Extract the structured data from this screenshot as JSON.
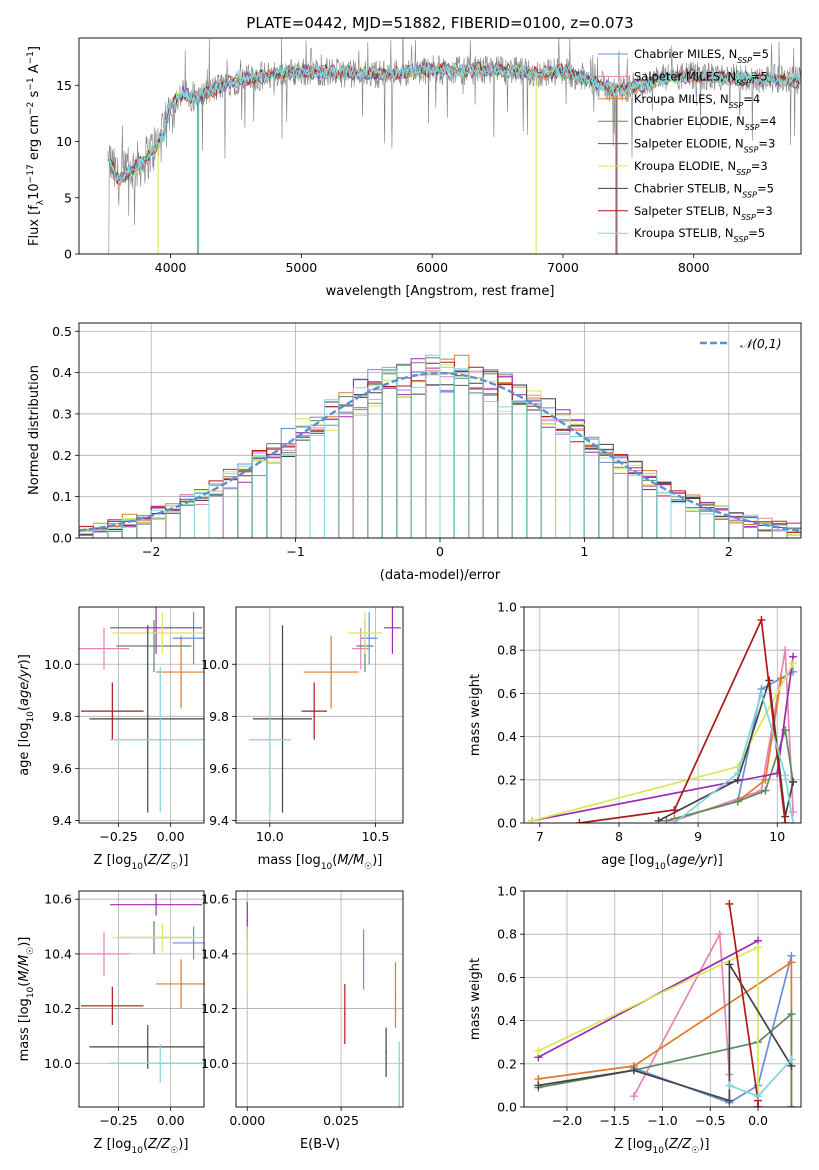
{
  "figure_title": "PLATE=0442, MJD=51882, FIBERID=0100, z=0.073",
  "colors": {
    "chabrier_miles": "#6a8fd8",
    "salpeter_miles": "#e882b8",
    "kroupa_miles": "#e07a2a",
    "chabrier_elodie": "#5f8a5f",
    "salpeter_elodie": "#9b2bb0",
    "kroupa_elodie": "#d8e85a",
    "chabrier_stelib": "#444444",
    "salpeter_stelib": "#b01818",
    "kroupa_stelib": "#7fd6dc",
    "data": "#808080",
    "normal": "#5b8fd6",
    "grid": "#b0b0b0"
  },
  "chart_data": [
    {
      "id": "spectrum",
      "type": "line",
      "title": "PLATE=0442, MJD=51882, FIBERID=0100, z=0.073",
      "xlabel": "wavelength [Angstrom, rest frame]",
      "ylabel": "Flux [f_λ 10^-17 erg cm^-2 s^-1 A^-1]",
      "xlim": [
        3300,
        8820
      ],
      "ylim": [
        0,
        19.2
      ],
      "xticks": [
        4000,
        5000,
        6000,
        7000,
        8000
      ],
      "yticks": [
        0,
        5,
        10,
        15
      ],
      "grid": false,
      "legend_position": "top-right",
      "continuum": {
        "x": [
          3520,
          3600,
          3700,
          3800,
          3900,
          3950,
          4000,
          4100,
          4200,
          4300,
          4400,
          4500,
          4600,
          4800,
          5000,
          5200,
          5400,
          5600,
          5800,
          6000,
          6200,
          6400,
          6600,
          6800,
          7000,
          7200,
          7400,
          7600,
          7800,
          8000,
          8200,
          8400,
          8600,
          8800
        ],
        "y": [
          8.5,
          6.5,
          7.5,
          8.3,
          9.8,
          10.5,
          13.3,
          14.3,
          13.8,
          14.5,
          15.0,
          15.4,
          15.6,
          16.0,
          16.2,
          16.2,
          16.0,
          16.0,
          16.2,
          16.4,
          16.3,
          16.4,
          16.3,
          16.0,
          16.3,
          15.5,
          14.5,
          15.0,
          15.7,
          15.8,
          15.7,
          15.6,
          15.6,
          15.4
        ]
      },
      "series": [
        {
          "name": "Chabrier MILES, N_SSP=5",
          "key": "chabrier_miles"
        },
        {
          "name": "Salpeter MILES, N_SSP=5",
          "key": "salpeter_miles"
        },
        {
          "name": "Kroupa MILES, N_SSP=4",
          "key": "kroupa_miles"
        },
        {
          "name": "Chabrier ELODIE, N_SSP=4",
          "key": "chabrier_elodie"
        },
        {
          "name": "Salpeter ELODIE, N_SSP=3",
          "key": "salpeter_elodie"
        },
        {
          "name": "Kroupa ELODIE, N_SSP=3",
          "key": "kroupa_elodie"
        },
        {
          "name": "Chabrier STELIB, N_SSP=5",
          "key": "chabrier_stelib"
        },
        {
          "name": "Salpeter STELIB, N_SSP=3",
          "key": "salpeter_stelib"
        },
        {
          "name": "Kroupa STELIB, N_SSP=5",
          "key": "kroupa_stelib"
        }
      ]
    },
    {
      "id": "residuals",
      "type": "bar",
      "xlabel": "(data-model)/error",
      "ylabel": "Normed distribution",
      "xlim": [
        -2.5,
        2.5
      ],
      "ylim": [
        0,
        0.52
      ],
      "xticks": [
        -2,
        -1,
        0,
        1,
        2
      ],
      "yticks": [
        0.0,
        0.1,
        0.2,
        0.3,
        0.4,
        0.5
      ],
      "grid": true,
      "legend_position": "top-right",
      "legend": [
        "𝒩(0,1)"
      ],
      "bin_width": 0.1
    },
    {
      "id": "age_vs_Z",
      "type": "scatter",
      "xlabel": "Z [log10(Z/Z☉)]",
      "ylabel": "age  [log10(age/yr)]",
      "xlim": [
        -0.44,
        0.16
      ],
      "ylim": [
        9.39,
        10.22
      ],
      "xticks": [
        -0.25,
        0.0
      ],
      "yticks": [
        9.4,
        9.6,
        9.8,
        10.0
      ],
      "grid": true,
      "points": [
        {
          "key": "chabrier_miles",
          "x": 0.11,
          "y": 10.1,
          "xerr": 0.1,
          "yerr": 0.1
        },
        {
          "key": "salpeter_miles",
          "x": -0.32,
          "y": 10.06,
          "xerr": 0.12,
          "yerr": 0.08
        },
        {
          "key": "kroupa_miles",
          "x": 0.05,
          "y": 9.97,
          "xerr": 0.12,
          "yerr": 0.14
        },
        {
          "key": "chabrier_elodie",
          "x": -0.08,
          "y": 10.07,
          "xerr": 0.18,
          "yerr": 0.1
        },
        {
          "key": "salpeter_elodie",
          "x": -0.07,
          "y": 10.14,
          "xerr": 0.22,
          "yerr": 0.1
        },
        {
          "key": "kroupa_elodie",
          "x": -0.04,
          "y": 10.12,
          "xerr": 0.24,
          "yerr": 0.08
        },
        {
          "key": "chabrier_stelib",
          "x": -0.11,
          "y": 9.79,
          "xerr": 0.28,
          "yerr": 0.36
        },
        {
          "key": "salpeter_stelib",
          "x": -0.28,
          "y": 9.82,
          "xerr": 0.15,
          "yerr": 0.11
        },
        {
          "key": "kroupa_stelib",
          "x": -0.05,
          "y": 9.71,
          "xerr": 0.24,
          "yerr": 0.28
        }
      ]
    },
    {
      "id": "age_vs_mass",
      "type": "scatter",
      "xlabel": "mass [log10(M/M☉)]",
      "ylabel": "",
      "xlim": [
        9.84,
        10.63
      ],
      "ylim": [
        9.39,
        10.22
      ],
      "xticks": [
        10.0,
        10.5
      ],
      "yticks": [
        9.4,
        9.6,
        9.8,
        10.0
      ],
      "grid": true,
      "points": [
        {
          "key": "chabrier_miles",
          "x": 10.47,
          "y": 10.1,
          "xerr": 0.04,
          "yerr": 0.1
        },
        {
          "key": "salpeter_miles",
          "x": 10.43,
          "y": 10.06,
          "xerr": 0.04,
          "yerr": 0.08
        },
        {
          "key": "kroupa_miles",
          "x": 10.29,
          "y": 9.97,
          "xerr": 0.13,
          "yerr": 0.14
        },
        {
          "key": "chabrier_elodie",
          "x": 10.45,
          "y": 10.07,
          "xerr": 0.04,
          "yerr": 0.1
        },
        {
          "key": "salpeter_elodie",
          "x": 10.58,
          "y": 10.14,
          "xerr": 0.04,
          "yerr": 0.1
        },
        {
          "key": "kroupa_elodie",
          "x": 10.45,
          "y": 10.12,
          "xerr": 0.08,
          "yerr": 0.08
        },
        {
          "key": "chabrier_stelib",
          "x": 10.06,
          "y": 9.79,
          "xerr": 0.14,
          "yerr": 0.36
        },
        {
          "key": "salpeter_stelib",
          "x": 10.21,
          "y": 9.82,
          "xerr": 0.06,
          "yerr": 0.11
        },
        {
          "key": "kroupa_stelib",
          "x": 10.0,
          "y": 9.71,
          "xerr": 0.1,
          "yerr": 0.28
        }
      ]
    },
    {
      "id": "weight_vs_age",
      "type": "line",
      "xlabel": "age  [log10(age/yr)]",
      "ylabel": "mass weight",
      "xlim": [
        6.8,
        10.3
      ],
      "ylim": [
        0,
        1.0
      ],
      "xticks": [
        7,
        8,
        9,
        10
      ],
      "yticks": [
        0.0,
        0.2,
        0.4,
        0.6,
        0.8,
        1.0
      ],
      "grid": true,
      "series": [
        {
          "key": "chabrier_miles",
          "x": [
            8.7,
            9.5,
            9.8,
            10.2
          ],
          "y": [
            0.02,
            0.1,
            0.62,
            0.7
          ]
        },
        {
          "key": "salpeter_miles",
          "x": [
            8.7,
            9.8,
            10.1,
            10.2
          ],
          "y": [
            0.01,
            0.15,
            0.8,
            0.05
          ]
        },
        {
          "key": "kroupa_miles",
          "x": [
            8.7,
            9.5,
            9.85,
            10.05
          ],
          "y": [
            0.02,
            0.1,
            0.2,
            0.67
          ]
        },
        {
          "key": "chabrier_elodie",
          "x": [
            8.6,
            9.5,
            9.85,
            10.1,
            10.2
          ],
          "y": [
            0.01,
            0.1,
            0.15,
            0.43,
            0.19
          ]
        },
        {
          "key": "salpeter_elodie",
          "x": [
            6.9,
            10.0,
            10.2
          ],
          "y": [
            0.01,
            0.23,
            0.77
          ]
        },
        {
          "key": "kroupa_elodie",
          "x": [
            6.9,
            9.5,
            10.2
          ],
          "y": [
            0.01,
            0.26,
            0.74
          ]
        },
        {
          "key": "chabrier_stelib",
          "x": [
            8.5,
            9.5,
            9.9,
            10.1,
            10.2
          ],
          "y": [
            0.01,
            0.2,
            0.66,
            0.03,
            0.19
          ]
        },
        {
          "key": "salpeter_stelib",
          "x": [
            7.5,
            8.7,
            9.8,
            10.1
          ],
          "y": [
            0.0,
            0.06,
            0.94,
            0.0
          ]
        },
        {
          "key": "kroupa_stelib",
          "x": [
            8.7,
            9.5,
            9.8,
            10.1,
            10.2
          ],
          "y": [
            0.0,
            0.23,
            0.6,
            0.22,
            0.0
          ]
        }
      ]
    },
    {
      "id": "mass_vs_Z",
      "type": "scatter",
      "xlabel": "Z [log10(Z/Z☉)]",
      "ylabel": "mass [log10(M/M☉)]",
      "xlim": [
        -0.44,
        0.16
      ],
      "ylim": [
        9.84,
        10.63
      ],
      "xticks": [
        -0.25,
        0.0
      ],
      "yticks": [
        10.0,
        10.2,
        10.4,
        10.6
      ],
      "grid": true,
      "points": [
        {
          "key": "chabrier_miles",
          "x": 0.11,
          "y": 10.44,
          "xerr": 0.1,
          "yerr": 0.06
        },
        {
          "key": "salpeter_miles",
          "x": -0.32,
          "y": 10.4,
          "xerr": 0.12,
          "yerr": 0.08
        },
        {
          "key": "kroupa_miles",
          "x": 0.05,
          "y": 10.29,
          "xerr": 0.12,
          "yerr": 0.09
        },
        {
          "key": "chabrier_elodie",
          "x": -0.08,
          "y": 10.46,
          "xerr": 0.18,
          "yerr": 0.06
        },
        {
          "key": "salpeter_elodie",
          "x": -0.07,
          "y": 10.58,
          "xerr": 0.22,
          "yerr": 0.04
        },
        {
          "key": "kroupa_elodie",
          "x": -0.04,
          "y": 10.46,
          "xerr": 0.24,
          "yerr": 0.05
        },
        {
          "key": "chabrier_stelib",
          "x": -0.11,
          "y": 10.06,
          "xerr": 0.28,
          "yerr": 0.08
        },
        {
          "key": "salpeter_stelib",
          "x": -0.28,
          "y": 10.21,
          "xerr": 0.15,
          "yerr": 0.07
        },
        {
          "key": "kroupa_stelib",
          "x": -0.05,
          "y": 10.0,
          "xerr": 0.24,
          "yerr": 0.07
        }
      ]
    },
    {
      "id": "mass_vs_ebv",
      "type": "scatter",
      "xlabel": "E(B-V)",
      "ylabel": "",
      "xlim": [
        -0.003,
        0.0415
      ],
      "ylim": [
        9.84,
        10.63
      ],
      "xticks": [
        0.0,
        0.025
      ],
      "yticks": [
        10.0,
        10.2,
        10.4,
        10.6
      ],
      "grid": true,
      "points": [
        {
          "key": "chabrier_miles",
          "x": 0.031,
          "y": 10.38,
          "xerr": 0,
          "yerr": 0.11
        },
        {
          "key": "salpeter_miles",
          "x": 0.031,
          "y": 10.4,
          "xerr": 0,
          "yerr": 0.0
        },
        {
          "key": "kroupa_miles",
          "x": 0.0395,
          "y": 10.25,
          "xerr": 0,
          "yerr": 0.12
        },
        {
          "key": "chabrier_elodie",
          "x": 0.0,
          "y": 10.45,
          "xerr": 0,
          "yerr": 0.05
        },
        {
          "key": "salpeter_elodie",
          "x": 0.0,
          "y": 10.52,
          "xerr": 0,
          "yerr": 0.07
        },
        {
          "key": "kroupa_elodie",
          "x": 0.0,
          "y": 10.38,
          "xerr": 0,
          "yerr": 0.12
        },
        {
          "key": "chabrier_stelib",
          "x": 0.037,
          "y": 10.04,
          "xerr": 0,
          "yerr": 0.09
        },
        {
          "key": "salpeter_stelib",
          "x": 0.026,
          "y": 10.18,
          "xerr": 0,
          "yerr": 0.11
        },
        {
          "key": "kroupa_stelib",
          "x": 0.0405,
          "y": 9.96,
          "xerr": 0,
          "yerr": 0.12
        }
      ]
    },
    {
      "id": "weight_vs_Z",
      "type": "line",
      "xlabel": "Z [log10(Z/Z☉)]",
      "ylabel": "mass weight",
      "xlim": [
        -2.45,
        0.45
      ],
      "ylim": [
        0,
        1.0
      ],
      "xticks": [
        -2.0,
        -1.5,
        -1.0,
        -0.5,
        0.0
      ],
      "yticks": [
        0.0,
        0.2,
        0.4,
        0.6,
        0.8,
        1.0
      ],
      "grid": true,
      "series": [
        {
          "key": "chabrier_miles",
          "x": [
            -1.3,
            -0.3,
            0.0,
            0.35
          ],
          "y": [
            0.18,
            0.02,
            0.1,
            0.7
          ]
        },
        {
          "key": "salpeter_miles",
          "x": [
            -1.3,
            -0.4,
            -0.3
          ],
          "y": [
            0.05,
            0.8,
            0.15
          ]
        },
        {
          "key": "kroupa_miles",
          "x": [
            -2.3,
            -1.3,
            0.35,
            0.35
          ],
          "y": [
            0.13,
            0.19,
            0.67,
            0.0
          ]
        },
        {
          "key": "chabrier_elodie",
          "x": [
            -2.3,
            -1.3,
            0.0,
            0.35,
            0.35
          ],
          "y": [
            0.09,
            0.17,
            0.3,
            0.43,
            0.0
          ]
        },
        {
          "key": "salpeter_elodie",
          "x": [
            -2.3,
            0.0
          ],
          "y": [
            0.23,
            0.77
          ]
        },
        {
          "key": "kroupa_elodie",
          "x": [
            -2.3,
            0.0,
            0.0
          ],
          "y": [
            0.26,
            0.74,
            0.0
          ]
        },
        {
          "key": "chabrier_stelib",
          "x": [
            -2.3,
            -1.3,
            -0.3,
            -0.3,
            0.35
          ],
          "y": [
            0.1,
            0.17,
            0.03,
            0.66,
            0.19
          ]
        },
        {
          "key": "salpeter_stelib",
          "x": [
            -0.3,
            0.0,
            0.0
          ],
          "y": [
            0.94,
            0.03,
            0.0
          ]
        },
        {
          "key": "kroupa_stelib",
          "x": [
            -0.3,
            0.0,
            0.35
          ],
          "y": [
            0.1,
            0.05,
            0.22
          ]
        }
      ]
    }
  ]
}
